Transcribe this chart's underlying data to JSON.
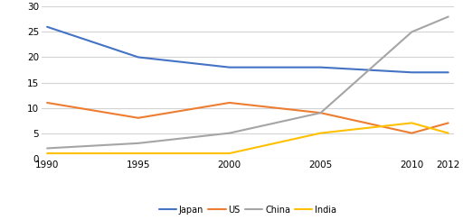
{
  "years": [
    1990,
    1995,
    2000,
    2005,
    2010,
    2012
  ],
  "series": {
    "Japan": [
      26,
      20,
      18,
      18,
      17,
      17
    ],
    "US": [
      11,
      8,
      11,
      9,
      5,
      7
    ],
    "China": [
      2,
      3,
      5,
      9,
      25,
      28
    ],
    "India": [
      1,
      1,
      1,
      5,
      7,
      5
    ]
  },
  "colors": {
    "Japan": "#4472C4",
    "US": "#ED7D31",
    "China": "#A5A5A5",
    "India": "#FFC000"
  },
  "ylim": [
    0,
    30
  ],
  "yticks": [
    0,
    5,
    10,
    15,
    20,
    25,
    30
  ],
  "xticks": [
    1990,
    1995,
    2000,
    2005,
    2010,
    2012
  ],
  "legend_order": [
    "Japan",
    "US",
    "China",
    "India"
  ],
  "bg_color": "#FFFFFF",
  "grid_color": "#D3D3D3",
  "linewidth": 1.5,
  "legend_fontsize": 7.0,
  "tick_fontsize": 7.5,
  "fig_width": 5.12,
  "fig_height": 2.44,
  "dpi": 100
}
